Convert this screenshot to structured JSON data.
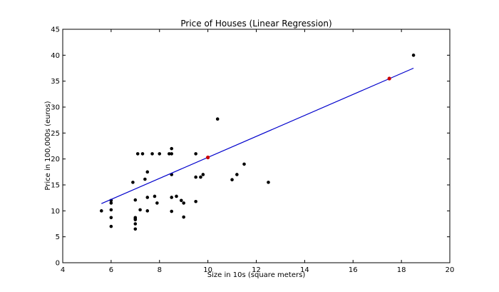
{
  "chart_data": {
    "type": "scatter",
    "title": "Price of Houses (Linear Regression)",
    "xlabel": "Size in 10s (square meters)",
    "ylabel": "Price in 100,000s (euros)",
    "xlim": [
      4,
      20
    ],
    "ylim": [
      0,
      45
    ],
    "xticks": [
      4,
      6,
      8,
      10,
      12,
      14,
      16,
      18,
      20
    ],
    "yticks": [
      0,
      5,
      10,
      15,
      20,
      25,
      30,
      35,
      40,
      45
    ],
    "grid": false,
    "colors": {
      "points": "#000000",
      "line": "#0000cc",
      "predictions": "#cc0000"
    },
    "series": [
      {
        "kind": "points",
        "points": [
          [
            5.6,
            10.0
          ],
          [
            6.0,
            12.0
          ],
          [
            6.0,
            11.5
          ],
          [
            6.0,
            10.2
          ],
          [
            6.0,
            8.7
          ],
          [
            6.0,
            7.0
          ],
          [
            6.9,
            15.5
          ],
          [
            7.0,
            12.1
          ],
          [
            7.0,
            8.7
          ],
          [
            7.0,
            8.5
          ],
          [
            7.0,
            8.3
          ],
          [
            7.0,
            7.5
          ],
          [
            7.0,
            6.5
          ],
          [
            7.1,
            21.0
          ],
          [
            7.2,
            10.2
          ],
          [
            7.3,
            21.0
          ],
          [
            7.4,
            16.1
          ],
          [
            7.5,
            17.5
          ],
          [
            7.5,
            12.6
          ],
          [
            7.5,
            10.0
          ],
          [
            7.7,
            21.0
          ],
          [
            7.8,
            12.8
          ],
          [
            7.9,
            11.5
          ],
          [
            8.0,
            21.0
          ],
          [
            8.4,
            21.0
          ],
          [
            8.5,
            22.0
          ],
          [
            8.5,
            21.0
          ],
          [
            8.5,
            17.0
          ],
          [
            8.5,
            12.6
          ],
          [
            8.5,
            9.9
          ],
          [
            8.7,
            12.8
          ],
          [
            8.9,
            12.0
          ],
          [
            9.0,
            11.5
          ],
          [
            9.0,
            8.8
          ],
          [
            9.5,
            21.0
          ],
          [
            9.5,
            16.5
          ],
          [
            9.5,
            11.8
          ],
          [
            9.7,
            16.5
          ],
          [
            9.8,
            17.0
          ],
          [
            10.4,
            27.7
          ],
          [
            11.0,
            16.0
          ],
          [
            11.2,
            17.0
          ],
          [
            11.5,
            19.0
          ],
          [
            12.5,
            15.5
          ],
          [
            18.5,
            40.0
          ]
        ]
      },
      {
        "kind": "regression-line",
        "points": [
          [
            5.6,
            11.4
          ],
          [
            18.5,
            37.5
          ]
        ]
      },
      {
        "kind": "predictions",
        "points": [
          [
            10.0,
            20.3
          ],
          [
            17.5,
            35.5
          ]
        ]
      }
    ]
  }
}
